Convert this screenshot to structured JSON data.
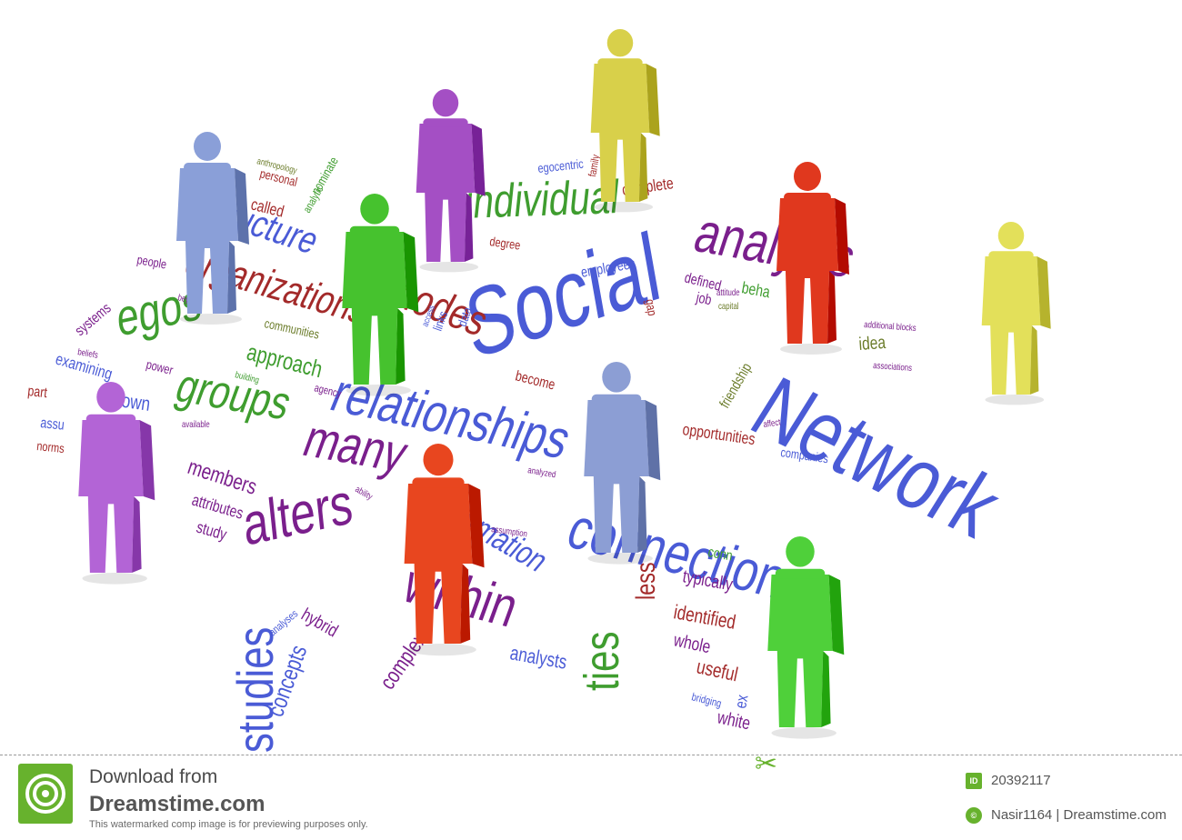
{
  "colors": {
    "blue": "#4a5bd6",
    "purple": "#7a1f8c",
    "green": "#3f9d2f",
    "red": "#a32a2a",
    "olive": "#6b7c2a",
    "footer_green": "#67b22d"
  },
  "scene": {
    "words": [
      "Social",
      "Network",
      "connections",
      "relationships",
      "analysis",
      "individual",
      "alters",
      "within",
      "many",
      "groups",
      "egos",
      "organizations",
      "structure",
      "nodes",
      "information",
      "ties",
      "less",
      "studies",
      "concepts",
      "complex",
      "analysts",
      "hybrid",
      "analyses",
      "members",
      "attributes",
      "study",
      "approach",
      "communities",
      "power",
      "known",
      "examining",
      "identified",
      "typically",
      "whole",
      "useful",
      "bridging",
      "white",
      "opportunities",
      "companies",
      "friendship",
      "idea",
      "employees",
      "complete",
      "egocentric",
      "defined",
      "job",
      "become",
      "called",
      "personal",
      "people",
      "systems",
      "norms",
      "beliefs",
      "links",
      "data",
      "access",
      "degree",
      "affect",
      "available",
      "analyzed",
      "assumption",
      "associations",
      "additional blocks",
      "ability",
      "agency",
      "building",
      "beyond",
      "anthropology",
      "nominate",
      "analytic",
      "capital",
      "attitude",
      "family",
      "identified",
      "conn",
      "beha",
      "gap",
      "ex",
      "assu",
      "part"
    ],
    "figures": [
      {
        "name": "blue-figure-left",
        "color": "#8a9fd8"
      },
      {
        "name": "purple-figure-top",
        "color": "#a44fc4"
      },
      {
        "name": "yellow-figure-top",
        "color": "#d8d04a"
      },
      {
        "name": "green-figure-center",
        "color": "#46c22e"
      },
      {
        "name": "red-figure-right",
        "color": "#e0381e"
      },
      {
        "name": "yellow-figure-right",
        "color": "#e3e05a"
      },
      {
        "name": "purple-figure-left",
        "color": "#b364d6"
      },
      {
        "name": "red-figure-front",
        "color": "#e8461f"
      },
      {
        "name": "blue-figure-center",
        "color": "#8c9ed4"
      },
      {
        "name": "green-figure-right",
        "color": "#4fd03a"
      }
    ]
  },
  "footer": {
    "download_from": "Download from",
    "brand": "Dreamstime.com",
    "note": "This watermarked comp image is for previewing purposes only.",
    "id_badge": "ID",
    "image_id": "20392117",
    "credit": "Nasir1164 | Dreamstime.com"
  }
}
